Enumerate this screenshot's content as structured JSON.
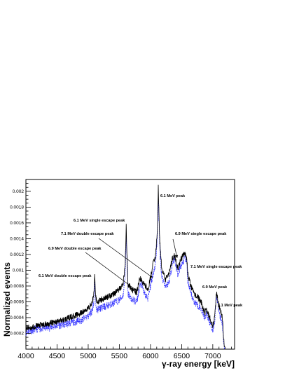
{
  "chart_data": {
    "type": "line",
    "title": "",
    "xlabel": "γ-ray energy [keV]",
    "ylabel": "Normalized events",
    "xlim": [
      4000,
      7350
    ],
    "ylim": [
      0,
      0.00215
    ],
    "xticks": [
      4000,
      4500,
      5000,
      5500,
      6000,
      6500,
      7000
    ],
    "xtick_labels": [
      "4000",
      "4500",
      "5000",
      "5500",
      "6000",
      "6500",
      "7000"
    ],
    "yticks": [
      0.0002,
      0.0004,
      0.0006,
      0.0008,
      0.001,
      0.0012,
      0.0014,
      0.0016,
      0.0018,
      0.002
    ],
    "ytick_labels": [
      "0.0002",
      "0.0004",
      "0.0006",
      "0.0008",
      "0.001",
      "0.0012",
      "0.0014",
      "0.0016",
      "0.0018",
      "0.002"
    ],
    "grid": false,
    "legend": "none",
    "series": [
      {
        "style": "solid",
        "color": "#000000",
        "x": [
          4000,
          4100,
          4200,
          4300,
          4400,
          4500,
          4600,
          4700,
          4800,
          4900,
          5000,
          5060,
          5090,
          5105,
          5120,
          5140,
          5200,
          5300,
          5400,
          5500,
          5560,
          5595,
          5610,
          5622,
          5640,
          5680,
          5720,
          5780,
          5830,
          5860,
          5900,
          5960,
          6000,
          6040,
          6080,
          6110,
          6125,
          6135,
          6150,
          6180,
          6240,
          6300,
          6350,
          6380,
          6410,
          6440,
          6480,
          6520,
          6560,
          6580,
          6600,
          6640,
          6700,
          6760,
          6820,
          6870,
          6900,
          6960,
          7000,
          7030,
          7060,
          7090,
          7120,
          7150,
          7175,
          7190
        ],
        "y": [
          0.00026,
          0.00028,
          0.0003,
          0.00031,
          0.00033,
          0.00035,
          0.00037,
          0.0004,
          0.00043,
          0.00046,
          0.00052,
          0.00058,
          0.0007,
          0.00095,
          0.00068,
          0.0006,
          0.00062,
          0.00066,
          0.0007,
          0.00076,
          0.00082,
          0.0011,
          0.00155,
          0.00122,
          0.00082,
          0.00078,
          0.00074,
          0.00072,
          0.0009,
          0.00086,
          0.00082,
          0.00076,
          0.0009,
          0.00108,
          0.00118,
          0.00148,
          0.00205,
          0.00175,
          0.00135,
          0.00102,
          0.00088,
          0.00096,
          0.00115,
          0.0012,
          0.00112,
          0.00102,
          0.00112,
          0.00118,
          0.00122,
          0.00116,
          0.00095,
          0.00082,
          0.0007,
          0.00066,
          0.00058,
          0.00046,
          0.0005,
          0.00038,
          0.0003,
          0.0004,
          0.00072,
          0.00058,
          0.00048,
          0.00042,
          0.00015,
          0.0
        ]
      },
      {
        "style": "dashed",
        "color": "#3030ff",
        "x": [
          4000,
          4100,
          4200,
          4300,
          4400,
          4500,
          4600,
          4700,
          4800,
          4900,
          5000,
          5060,
          5090,
          5105,
          5120,
          5140,
          5200,
          5300,
          5400,
          5500,
          5560,
          5595,
          5610,
          5622,
          5640,
          5680,
          5720,
          5780,
          5830,
          5860,
          5900,
          5960,
          6000,
          6040,
          6080,
          6110,
          6125,
          6135,
          6150,
          6180,
          6240,
          6300,
          6350,
          6380,
          6410,
          6440,
          6480,
          6520,
          6560,
          6580,
          6600,
          6640,
          6700,
          6760,
          6820,
          6870,
          6900,
          6960,
          7000,
          7030,
          7060,
          7090,
          7120,
          7150,
          7175,
          7190
        ],
        "y": [
          0.00022,
          0.00024,
          0.00026,
          0.00027,
          0.00028,
          0.0003,
          0.00031,
          0.00033,
          0.00035,
          0.00037,
          0.00042,
          0.00048,
          0.0006,
          0.00085,
          0.0006,
          0.0005,
          0.00052,
          0.00055,
          0.00058,
          0.00062,
          0.00068,
          0.00095,
          0.00145,
          0.0011,
          0.0007,
          0.00065,
          0.00062,
          0.0006,
          0.0008,
          0.00082,
          0.0007,
          0.00064,
          0.0008,
          0.00095,
          0.00108,
          0.0014,
          0.00195,
          0.00165,
          0.00125,
          0.00092,
          0.0008,
          0.00085,
          0.00108,
          0.00115,
          0.00105,
          0.00094,
          0.00104,
          0.0011,
          0.00116,
          0.0011,
          0.00085,
          0.00072,
          0.0006,
          0.00056,
          0.0005,
          0.0004,
          0.00045,
          0.00032,
          0.00024,
          0.00036,
          0.00068,
          0.00052,
          0.0004,
          0.00035,
          0.0001,
          0.0
        ]
      }
    ],
    "annotations": [
      {
        "text": "6.1 MeV peak"
      },
      {
        "text": "6.1 MeV single escape peak"
      },
      {
        "text": "6.9 MeV single escape peak"
      },
      {
        "text": "7.1 MeV double escape peak"
      },
      {
        "text": "6.9 MeV double escape peak"
      },
      {
        "text": "7.1 MeV single escape peak"
      },
      {
        "text": "6.1 MeV double escape peak"
      },
      {
        "text": "6.9 MeV peak"
      },
      {
        "text": "7.1 MeV peak"
      }
    ]
  }
}
